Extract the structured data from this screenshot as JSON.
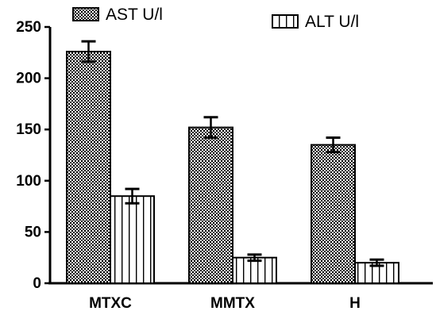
{
  "chart_data": {
    "type": "bar",
    "title": "",
    "xlabel": "",
    "ylabel": "",
    "categories": [
      "MTXC",
      "MMTX",
      "H"
    ],
    "ylim": [
      0,
      250
    ],
    "yticks": [
      0,
      50,
      100,
      150,
      200,
      250
    ],
    "series": [
      {
        "name": "AST U/l",
        "pattern": "checker",
        "values": [
          226,
          152,
          135
        ],
        "errors": [
          10,
          10,
          7
        ]
      },
      {
        "name": "ALT U/l",
        "pattern": "vertical-stripes",
        "values": [
          85,
          25,
          20
        ],
        "errors": [
          7,
          3,
          3
        ]
      }
    ],
    "legend": "top",
    "grid": false,
    "colors": {
      "ink": "#000000",
      "fill": "#ffffff"
    }
  }
}
